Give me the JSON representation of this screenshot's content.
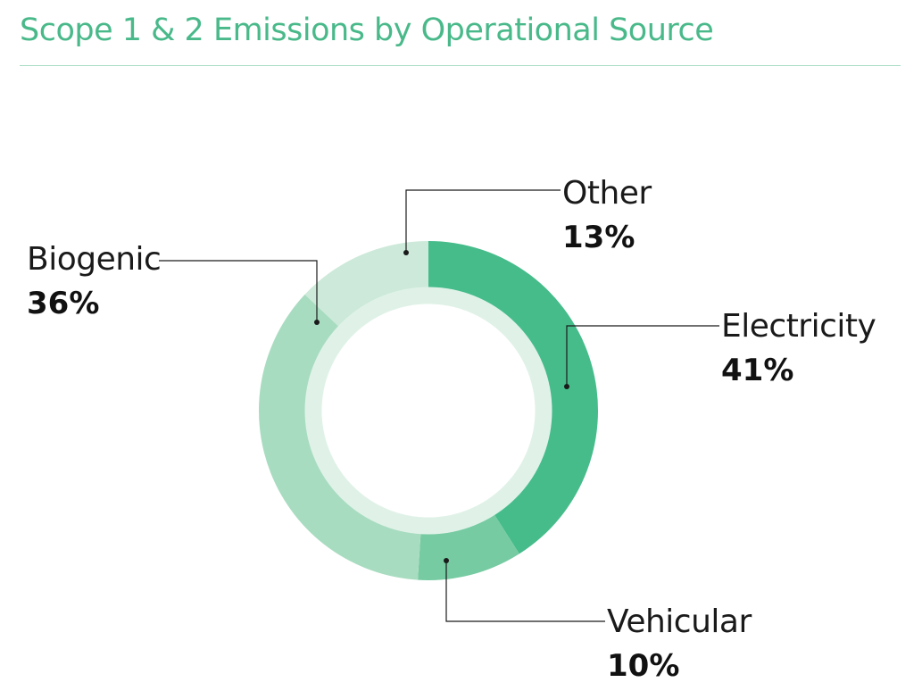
{
  "chart_data": {
    "type": "pie",
    "title": "Scope 1 & 2 Emissions by Operational Source",
    "slices": [
      {
        "label": "Electricity",
        "value": 41,
        "display": "41%",
        "color": "#46bc8b"
      },
      {
        "label": "Vehicular",
        "value": 10,
        "display": "10%",
        "color": "#76cba2"
      },
      {
        "label": "Biogenic",
        "value": 36,
        "display": "36%",
        "color": "#a8dcc0"
      },
      {
        "label": "Other",
        "value": 13,
        "display": "13%",
        "color": "#cce9d9"
      }
    ],
    "inner_ring_color": "#e0f2e8",
    "leader_line_color": "#1a1a1a"
  }
}
